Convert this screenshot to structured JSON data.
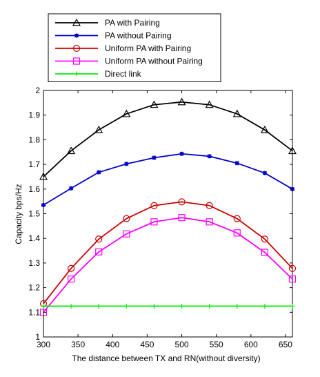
{
  "chart_data": {
    "type": "line",
    "title": "",
    "xlabel": "The distance between TX and RN(without diversity)",
    "ylabel": "Capacity bps/Hz",
    "xlim": [
      300,
      660
    ],
    "ylim": [
      1,
      2
    ],
    "x_ticks": [
      300,
      350,
      400,
      450,
      500,
      550,
      600,
      650
    ],
    "y_ticks": [
      1,
      1.1,
      1.2,
      1.3,
      1.4,
      1.5,
      1.6,
      1.7,
      1.8,
      1.9,
      2
    ],
    "x_tick_labels": [
      "300",
      "350",
      "400",
      "450",
      "500",
      "550",
      "600",
      "650"
    ],
    "y_tick_labels": [
      "1",
      "1.1",
      "1.2",
      "1.3",
      "1.4",
      "1.5",
      "1.6",
      "1.7",
      "1.8",
      "1.9",
      "2"
    ],
    "grid": false,
    "legend_position": "top",
    "x": [
      300,
      340,
      380,
      420,
      460,
      500,
      540,
      580,
      620,
      660
    ],
    "series": [
      {
        "name": "PA with Pairing",
        "color": "#000000",
        "marker": "triangle",
        "values": [
          1.65,
          1.755,
          1.84,
          1.905,
          1.942,
          1.953,
          1.942,
          1.905,
          1.84,
          1.755
        ]
      },
      {
        "name": "PA without Pairing",
        "color": "#0000cc",
        "marker": "star",
        "values": [
          1.535,
          1.603,
          1.668,
          1.702,
          1.727,
          1.743,
          1.733,
          1.705,
          1.665,
          1.6
        ]
      },
      {
        "name": "Uniform PA with Pairing",
        "color": "#cc0000",
        "marker": "circle",
        "values": [
          1.135,
          1.278,
          1.397,
          1.48,
          1.533,
          1.548,
          1.533,
          1.48,
          1.397,
          1.278
        ]
      },
      {
        "name": "Uniform PA without Pairing",
        "color": "#ff00ff",
        "marker": "square",
        "values": [
          1.1,
          1.235,
          1.345,
          1.418,
          1.467,
          1.484,
          1.467,
          1.422,
          1.343,
          1.235
        ]
      },
      {
        "name": "Direct link",
        "color": "#00ee00",
        "marker": "plus",
        "values": [
          1.125,
          1.125,
          1.125,
          1.125,
          1.125,
          1.125,
          1.125,
          1.125,
          1.125,
          1.125
        ]
      }
    ]
  }
}
